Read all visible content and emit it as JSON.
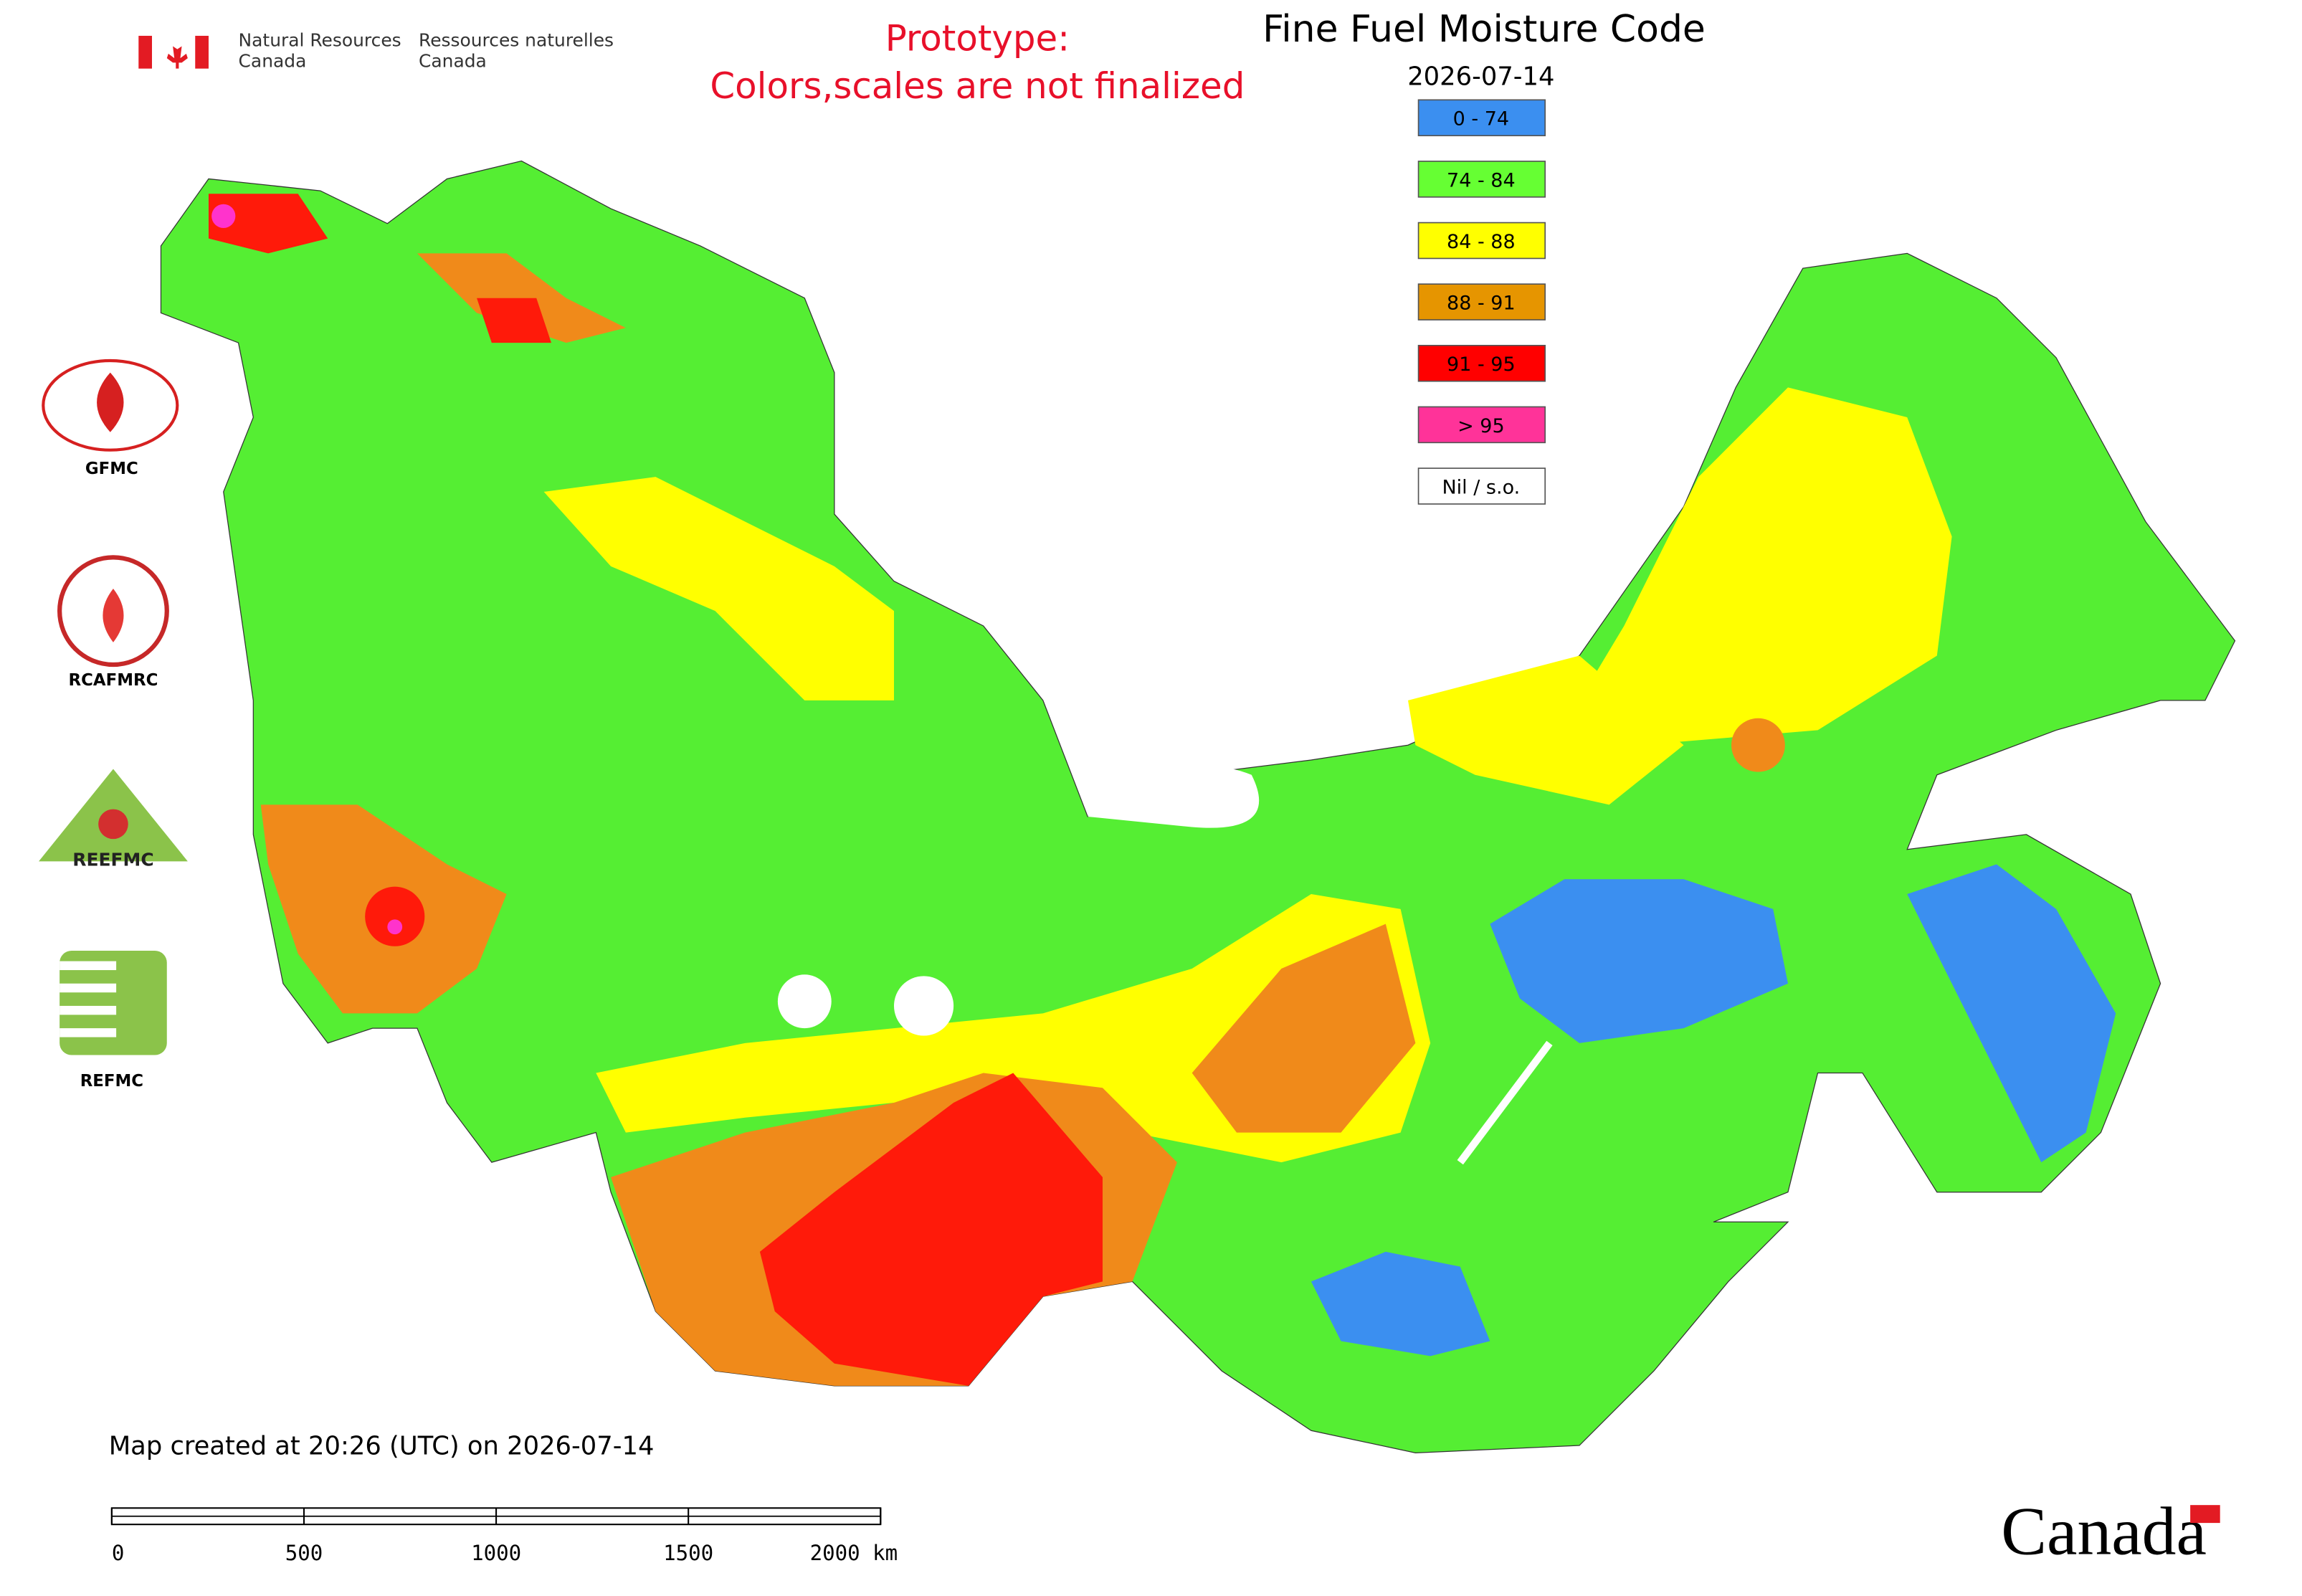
{
  "header": {
    "agency_en": [
      "Natural Resources",
      "Canada"
    ],
    "agency_fr": [
      "Ressources naturelles",
      "Canada"
    ]
  },
  "notice": [
    "Prototype:",
    "Colors,scales are not finalized"
  ],
  "title": "Fine Fuel Moisture Code",
  "date": "2026-07-14",
  "legend": [
    {
      "label": "0 - 74",
      "color": "#3b8ff0"
    },
    {
      "label": "74 - 84",
      "color": "#66ff33"
    },
    {
      "label": "84 - 88",
      "color": "#ffff00"
    },
    {
      "label": "88 - 91",
      "color": "#e69500"
    },
    {
      "label": "91 - 95",
      "color": "#ff0000"
    },
    {
      "label": "> 95",
      "color": "#ff3399"
    },
    {
      "label": "Nil / s.o.",
      "color": "#ffffff"
    }
  ],
  "logos": [
    "GFMC",
    "RCAFMRC",
    "REEFMC",
    "REFMC"
  ],
  "footer": "Map created at 20:26 (UTC) on 2026-07-14",
  "scale_bar": [
    "0",
    "500",
    "1000",
    "1500",
    "2000 km"
  ],
  "wordmark": "Canada"
}
